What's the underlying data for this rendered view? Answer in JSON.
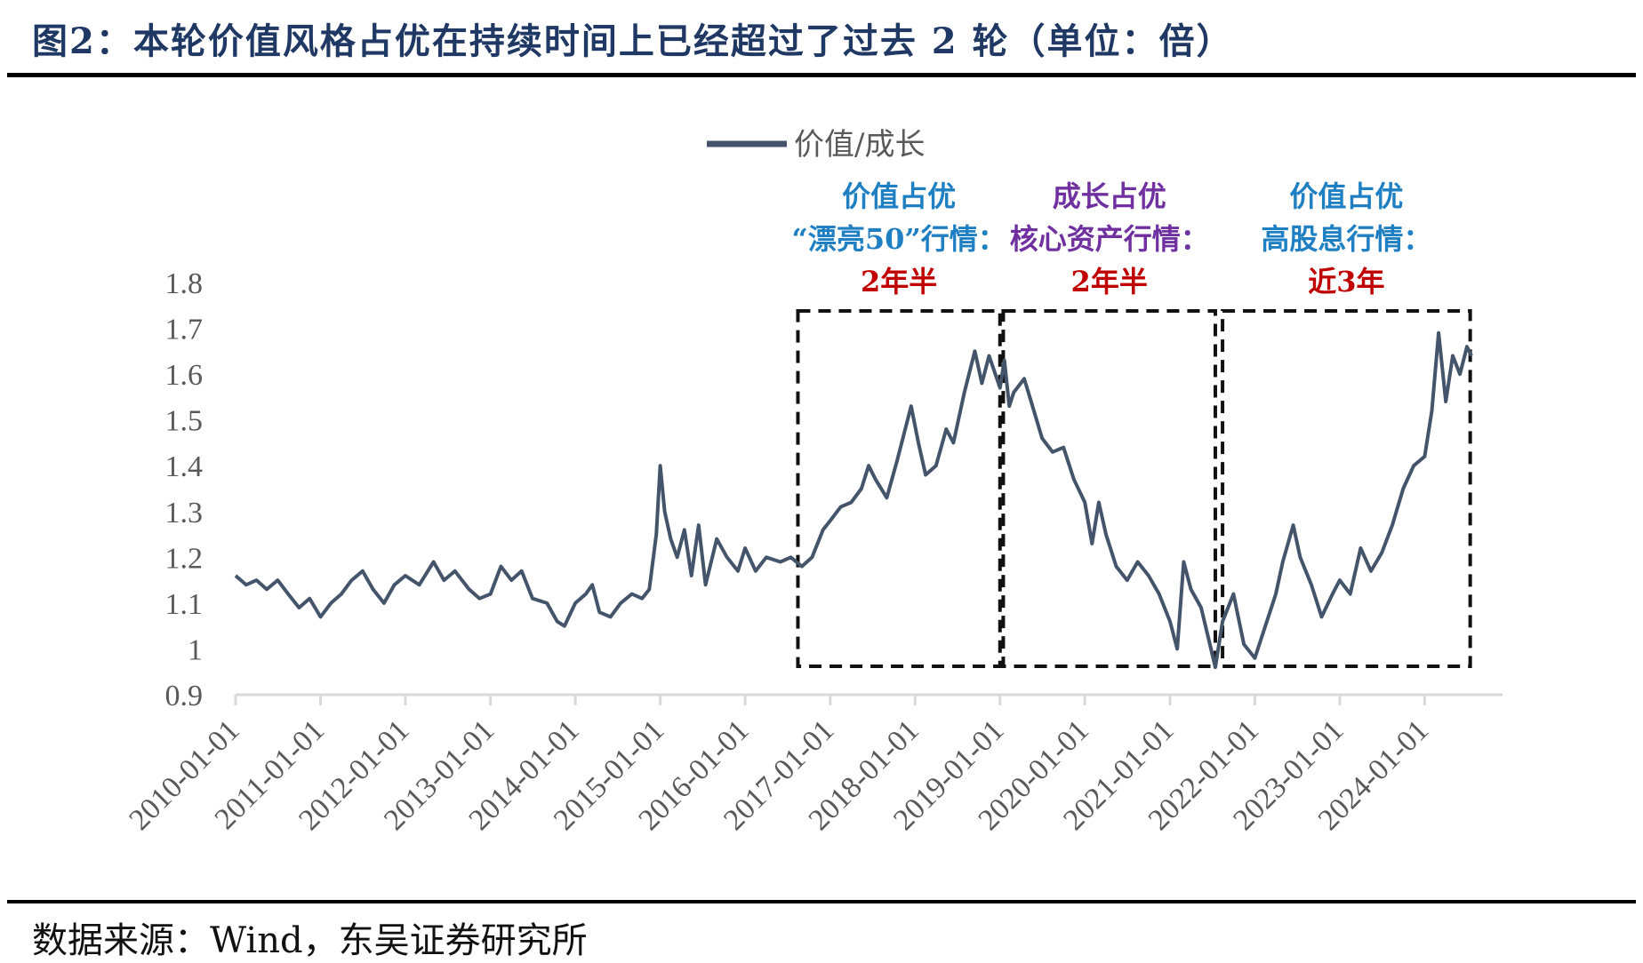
{
  "title": "图2：本轮价值风格占优在持续时间上已经超过了过去 2 轮（单位：倍）",
  "source": "数据来源：Wind，东吴证券研究所",
  "colors": {
    "line": "#44546a",
    "title": "#1f3864",
    "blue": "#1f7fc3",
    "purple": "#7030a0",
    "red": "#c00000",
    "axis": "#d9d9d9",
    "tick": "#595959"
  },
  "annotations": [
    {
      "title": "价值占优",
      "subtitle": "“漂亮50”行情：",
      "duration": "2年半",
      "title_color": "#1f7fc3",
      "subtitle_color": "#1f7fc3",
      "start": "2016-08-15",
      "end": "2019-01-01"
    },
    {
      "title": "成长占优",
      "subtitle": "核心资产行情：",
      "duration": "2年半",
      "title_color": "#7030a0",
      "subtitle_color": "#7030a0",
      "start": "2019-01-15",
      "end": "2021-07-15"
    },
    {
      "title": "价值占优",
      "subtitle": "高股息行情：",
      "duration": "近3年",
      "title_color": "#1f7fc3",
      "subtitle_color": "#1f7fc3",
      "start": "2021-08-15",
      "end": "2024-07-15"
    }
  ],
  "chart_data": {
    "type": "line",
    "title": "",
    "xlabel": "",
    "ylabel": "",
    "ylim": [
      0.9,
      1.8
    ],
    "yticks": [
      "1.8",
      "1.7",
      "1.6",
      "1.5",
      "1.4",
      "1.3",
      "1.2",
      "1.1",
      "1",
      "0.9"
    ],
    "xticks": [
      "2010-01-01",
      "2011-01-01",
      "2012-01-01",
      "2013-01-01",
      "2014-01-01",
      "2015-01-01",
      "2016-01-01",
      "2017-01-01",
      "2018-01-01",
      "2019-01-01",
      "2020-01-01",
      "2021-01-01",
      "2022-01-01",
      "2023-01-01",
      "2024-01-01"
    ],
    "grid": false,
    "legend": "top-center",
    "series": [
      {
        "name": "价值/成长",
        "points": [
          [
            "2010-01-01",
            1.16
          ],
          [
            "2010-02-15",
            1.14
          ],
          [
            "2010-04-01",
            1.15
          ],
          [
            "2010-05-15",
            1.13
          ],
          [
            "2010-07-01",
            1.15
          ],
          [
            "2010-08-15",
            1.12
          ],
          [
            "2010-10-01",
            1.09
          ],
          [
            "2010-11-15",
            1.11
          ],
          [
            "2011-01-01",
            1.07
          ],
          [
            "2011-02-15",
            1.1
          ],
          [
            "2011-04-01",
            1.12
          ],
          [
            "2011-05-15",
            1.15
          ],
          [
            "2011-07-01",
            1.17
          ],
          [
            "2011-08-15",
            1.13
          ],
          [
            "2011-10-01",
            1.1
          ],
          [
            "2011-11-15",
            1.14
          ],
          [
            "2012-01-01",
            1.16
          ],
          [
            "2012-03-01",
            1.14
          ],
          [
            "2012-05-01",
            1.19
          ],
          [
            "2012-06-15",
            1.15
          ],
          [
            "2012-08-01",
            1.17
          ],
          [
            "2012-10-01",
            1.13
          ],
          [
            "2012-11-15",
            1.11
          ],
          [
            "2013-01-01",
            1.12
          ],
          [
            "2013-02-15",
            1.18
          ],
          [
            "2013-04-01",
            1.15
          ],
          [
            "2013-05-15",
            1.17
          ],
          [
            "2013-07-01",
            1.11
          ],
          [
            "2013-09-01",
            1.1
          ],
          [
            "2013-10-15",
            1.06
          ],
          [
            "2013-11-15",
            1.05
          ],
          [
            "2014-01-01",
            1.1
          ],
          [
            "2014-02-15",
            1.12
          ],
          [
            "2014-03-15",
            1.14
          ],
          [
            "2014-04-15",
            1.08
          ],
          [
            "2014-06-01",
            1.07
          ],
          [
            "2014-07-15",
            1.1
          ],
          [
            "2014-09-01",
            1.12
          ],
          [
            "2014-10-15",
            1.11
          ],
          [
            "2014-11-15",
            1.13
          ],
          [
            "2014-12-15",
            1.25
          ],
          [
            "2015-01-01",
            1.4
          ],
          [
            "2015-01-20",
            1.3
          ],
          [
            "2015-02-15",
            1.24
          ],
          [
            "2015-03-15",
            1.2
          ],
          [
            "2015-04-15",
            1.26
          ],
          [
            "2015-05-15",
            1.16
          ],
          [
            "2015-06-15",
            1.27
          ],
          [
            "2015-07-15",
            1.14
          ],
          [
            "2015-09-01",
            1.24
          ],
          [
            "2015-10-15",
            1.2
          ],
          [
            "2015-12-01",
            1.17
          ],
          [
            "2016-01-01",
            1.22
          ],
          [
            "2016-02-15",
            1.17
          ],
          [
            "2016-04-01",
            1.2
          ],
          [
            "2016-06-01",
            1.19
          ],
          [
            "2016-07-15",
            1.2
          ],
          [
            "2016-09-01",
            1.18
          ],
          [
            "2016-10-15",
            1.2
          ],
          [
            "2016-12-01",
            1.26
          ],
          [
            "2017-01-01",
            1.28
          ],
          [
            "2017-02-15",
            1.31
          ],
          [
            "2017-04-01",
            1.32
          ],
          [
            "2017-05-15",
            1.35
          ],
          [
            "2017-06-15",
            1.4
          ],
          [
            "2017-07-15",
            1.37
          ],
          [
            "2017-09-01",
            1.33
          ],
          [
            "2017-10-15",
            1.41
          ],
          [
            "2017-12-15",
            1.53
          ],
          [
            "2018-01-15",
            1.45
          ],
          [
            "2018-02-15",
            1.38
          ],
          [
            "2018-04-01",
            1.4
          ],
          [
            "2018-05-15",
            1.48
          ],
          [
            "2018-06-15",
            1.45
          ],
          [
            "2018-08-01",
            1.56
          ],
          [
            "2018-09-15",
            1.65
          ],
          [
            "2018-10-15",
            1.58
          ],
          [
            "2018-11-15",
            1.64
          ],
          [
            "2019-01-01",
            1.57
          ],
          [
            "2019-01-20",
            1.63
          ],
          [
            "2019-02-10",
            1.53
          ],
          [
            "2019-03-01",
            1.56
          ],
          [
            "2019-04-15",
            1.59
          ],
          [
            "2019-05-15",
            1.54
          ],
          [
            "2019-07-01",
            1.46
          ],
          [
            "2019-08-15",
            1.43
          ],
          [
            "2019-10-01",
            1.44
          ],
          [
            "2019-11-15",
            1.37
          ],
          [
            "2020-01-01",
            1.32
          ],
          [
            "2020-02-01",
            1.23
          ],
          [
            "2020-03-01",
            1.32
          ],
          [
            "2020-04-01",
            1.25
          ],
          [
            "2020-05-15",
            1.18
          ],
          [
            "2020-07-01",
            1.15
          ],
          [
            "2020-08-15",
            1.19
          ],
          [
            "2020-10-01",
            1.16
          ],
          [
            "2020-11-15",
            1.12
          ],
          [
            "2021-01-01",
            1.06
          ],
          [
            "2021-02-01",
            1.0
          ],
          [
            "2021-03-01",
            1.19
          ],
          [
            "2021-04-01",
            1.13
          ],
          [
            "2021-05-15",
            1.09
          ],
          [
            "2021-07-15",
            0.96
          ],
          [
            "2021-08-15",
            1.06
          ],
          [
            "2021-10-01",
            1.12
          ],
          [
            "2021-11-15",
            1.01
          ],
          [
            "2022-01-01",
            0.98
          ],
          [
            "2022-02-15",
            1.05
          ],
          [
            "2022-04-01",
            1.12
          ],
          [
            "2022-05-01",
            1.19
          ],
          [
            "2022-06-15",
            1.27
          ],
          [
            "2022-07-15",
            1.2
          ],
          [
            "2022-09-01",
            1.14
          ],
          [
            "2022-10-15",
            1.07
          ],
          [
            "2022-12-01",
            1.12
          ],
          [
            "2023-01-01",
            1.15
          ],
          [
            "2023-02-15",
            1.12
          ],
          [
            "2023-04-01",
            1.22
          ],
          [
            "2023-05-15",
            1.17
          ],
          [
            "2023-07-01",
            1.21
          ],
          [
            "2023-08-15",
            1.27
          ],
          [
            "2023-10-01",
            1.35
          ],
          [
            "2023-11-15",
            1.4
          ],
          [
            "2024-01-01",
            1.42
          ],
          [
            "2024-02-01",
            1.52
          ],
          [
            "2024-03-01",
            1.69
          ],
          [
            "2024-04-01",
            1.54
          ],
          [
            "2024-05-01",
            1.64
          ],
          [
            "2024-06-01",
            1.6
          ],
          [
            "2024-07-01",
            1.66
          ],
          [
            "2024-07-20",
            1.64
          ]
        ]
      }
    ]
  }
}
